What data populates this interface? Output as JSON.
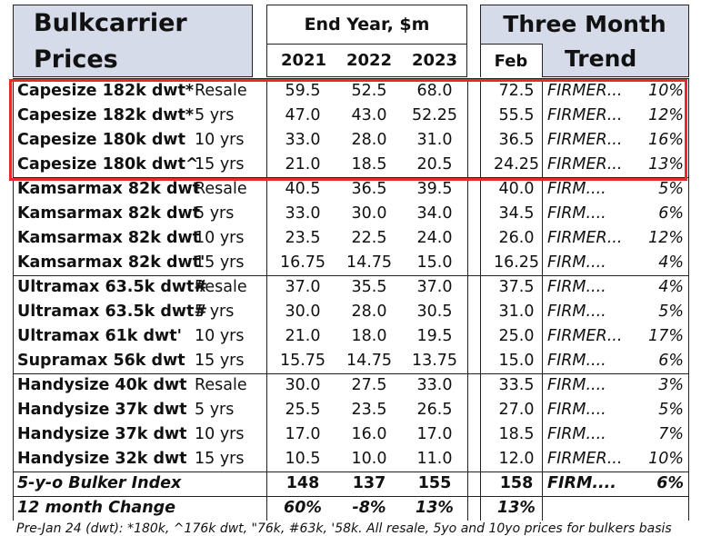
{
  "header": {
    "title_line1": "Bulkcarrier",
    "title_line2": "Prices",
    "end_year": "End Year, $m",
    "years": [
      "2021",
      "2022",
      "2023"
    ],
    "three_month": "Three Month",
    "feb": "Feb",
    "trend": "Trend"
  },
  "rows": [
    {
      "name": "Capesize 182k dwt*",
      "age": "Resale",
      "y2021": "59.5",
      "y2022": "52.5",
      "y2023": "68.0",
      "feb": "72.5",
      "trend": "FIRMER...",
      "pct": "10%"
    },
    {
      "name": "Capesize 182k dwt*",
      "age": "5 yrs",
      "y2021": "47.0",
      "y2022": "43.0",
      "y2023": "52.25",
      "feb": "55.5",
      "trend": "FIRMER...",
      "pct": "12%"
    },
    {
      "name": "Capesize 180k dwt",
      "age": "10 yrs",
      "y2021": "33.0",
      "y2022": "28.0",
      "y2023": "31.0",
      "feb": "36.5",
      "trend": "FIRMER...",
      "pct": "16%"
    },
    {
      "name": "Capesize 180k dwt^",
      "age": "15 yrs",
      "y2021": "21.0",
      "y2022": "18.5",
      "y2023": "20.5",
      "feb": "24.25",
      "trend": "FIRMER...",
      "pct": "13%"
    },
    {
      "name": "Kamsarmax 82k dwt",
      "age": "Resale",
      "y2021": "40.5",
      "y2022": "36.5",
      "y2023": "39.5",
      "feb": "40.0",
      "trend": "FIRM....",
      "pct": "5%"
    },
    {
      "name": "Kamsarmax 82k dwt",
      "age": "5 yrs",
      "y2021": "33.0",
      "y2022": "30.0",
      "y2023": "34.0",
      "feb": "34.5",
      "trend": "FIRM....",
      "pct": "6%"
    },
    {
      "name": "Kamsarmax 82k dwt",
      "age": "10 yrs",
      "y2021": "23.5",
      "y2022": "22.5",
      "y2023": "24.0",
      "feb": "26.0",
      "trend": "FIRMER...",
      "pct": "12%"
    },
    {
      "name": "Kamsarmax 82k dwt'",
      "age": "15 yrs",
      "y2021": "16.75",
      "y2022": "14.75",
      "y2023": "15.0",
      "feb": "16.25",
      "trend": "FIRM....",
      "pct": "4%"
    },
    {
      "name": "Ultramax 63.5k dwt#",
      "age": "Resale",
      "y2021": "37.0",
      "y2022": "35.5",
      "y2023": "37.0",
      "feb": "37.5",
      "trend": "FIRM....",
      "pct": "4%"
    },
    {
      "name": "Ultramax 63.5k dwt#",
      "age": "5 yrs",
      "y2021": "30.0",
      "y2022": "28.0",
      "y2023": "30.5",
      "feb": "31.0",
      "trend": "FIRM....",
      "pct": "5%"
    },
    {
      "name": "Ultramax 61k dwt'",
      "age": "10 yrs",
      "y2021": "21.0",
      "y2022": "18.0",
      "y2023": "19.5",
      "feb": "25.0",
      "trend": "FIRMER...",
      "pct": "17%"
    },
    {
      "name": "Supramax 56k dwt",
      "age": "15 yrs",
      "y2021": "15.75",
      "y2022": "14.75",
      "y2023": "13.75",
      "feb": "15.0",
      "trend": "FIRM....",
      "pct": "6%"
    },
    {
      "name": "Handysize 40k dwt",
      "age": "Resale",
      "y2021": "30.0",
      "y2022": "27.5",
      "y2023": "33.0",
      "feb": "33.5",
      "trend": "FIRM....",
      "pct": "3%"
    },
    {
      "name": "Handysize 37k dwt",
      "age": "5 yrs",
      "y2021": "25.5",
      "y2022": "23.5",
      "y2023": "26.5",
      "feb": "27.0",
      "trend": "FIRM....",
      "pct": "5%"
    },
    {
      "name": "Handysize 37k dwt",
      "age": "10 yrs",
      "y2021": "17.0",
      "y2022": "16.0",
      "y2023": "17.0",
      "feb": "18.5",
      "trend": "FIRM....",
      "pct": "7%"
    },
    {
      "name": "Handysize 32k dwt",
      "age": "15 yrs",
      "y2021": "10.5",
      "y2022": "10.0",
      "y2023": "11.0",
      "feb": "12.0",
      "trend": "FIRMER...",
      "pct": "10%"
    }
  ],
  "index_row": {
    "name": "5-y-o Bulker Index",
    "y2021": "148",
    "y2022": "137",
    "y2023": "155",
    "feb": "158",
    "trend": "FIRM....",
    "pct": "6%"
  },
  "change_row": {
    "name": "12 month Change",
    "y2021": "60%",
    "y2022": "-8%",
    "y2023": "13%",
    "feb": "13%"
  },
  "footnote": "Pre-Jan 24 (dwt): *180k, ^176k dwt, \"76k, #63k, '58k. All resale, 5yo and 10yo prices for bulkers basis",
  "colors": {
    "header_shade": "#d6dbe9",
    "highlight_box": "#e8282d"
  }
}
